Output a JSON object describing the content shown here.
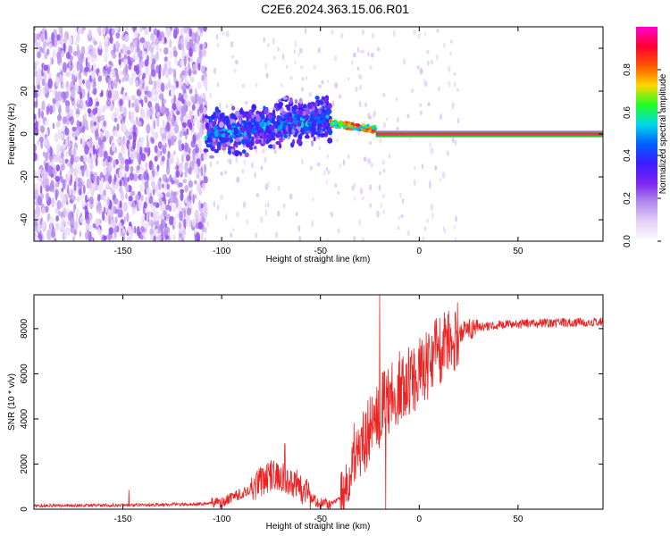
{
  "figure": {
    "title": "C2E6.2024.363.15.06.R01"
  },
  "colors": {
    "snr_line": "#ee2222",
    "spectrogram_colormap": [
      "#ffffff",
      "#e6d2f7",
      "#b38aee",
      "#7a24f0",
      "#3a1cff",
      "#0060ff",
      "#00d8e8",
      "#22ff22",
      "#ffd700",
      "#ff5500",
      "#ff0033",
      "#ff00cc"
    ],
    "trace_center": "#ff2266",
    "trace_edge": "#22cc22"
  },
  "chart_data": [
    {
      "type": "heatmap",
      "name": "spectrogram",
      "xlabel": "Height of straight line (km)",
      "ylabel": "Frequency (Hz)",
      "xlim": [
        -195,
        93
      ],
      "ylim": [
        -50,
        50
      ],
      "x_ticks": [
        -150,
        -100,
        -50,
        0,
        50
      ],
      "y_ticks": [
        -40,
        -20,
        0,
        20,
        40
      ],
      "colorbar": {
        "label": "Normalized spectral amplitude",
        "range": [
          0,
          1
        ],
        "ticks": [
          0.0,
          0.2,
          0.4,
          0.6,
          0.8
        ]
      },
      "regions": [
        {
          "x_range": [
            -195,
            -108
          ],
          "description": "diffuse noise",
          "amplitude": [
            0.05,
            0.25
          ],
          "freq_spread": 50
        },
        {
          "x_range": [
            -108,
            -45
          ],
          "description": "broadened signal",
          "center_freq": [
            0,
            8
          ],
          "freq_spread": 10,
          "amplitude": [
            0.15,
            0.45
          ]
        },
        {
          "x_range": [
            -45,
            -22
          ],
          "description": "signal tightening",
          "center_freq": [
            5,
            2
          ],
          "freq_spread": 3,
          "amplitude": [
            0.5,
            0.9
          ]
        },
        {
          "x_range": [
            -22,
            93
          ],
          "description": "stable tone",
          "center_freq": 0,
          "freq_spread": 1,
          "amplitude": [
            0.95,
            1.0
          ]
        }
      ]
    },
    {
      "type": "line",
      "name": "snr",
      "xlabel": "Height of straight line (km)",
      "ylabel": "SNR (10 * v/v)",
      "xlim": [
        -195,
        93
      ],
      "ylim": [
        0,
        9500
      ],
      "x_ticks": [
        -150,
        -100,
        -50,
        0,
        50
      ],
      "y_ticks": [
        0,
        2000,
        4000,
        6000,
        8000
      ],
      "envelope": {
        "x": [
          -195,
          -150,
          -110,
          -100,
          -90,
          -75,
          -65,
          -60,
          -55,
          -50,
          -45,
          -40,
          -35,
          -30,
          -25,
          -20,
          -15,
          -10,
          -5,
          0,
          5,
          10,
          15,
          20,
          25,
          30,
          40,
          50,
          60,
          70,
          80,
          93
        ],
        "y": [
          150,
          180,
          230,
          300,
          700,
          1500,
          1300,
          900,
          500,
          250,
          200,
          500,
          1800,
          2900,
          3600,
          4300,
          4900,
          5400,
          5600,
          6000,
          6500,
          7100,
          7500,
          7800,
          7950,
          8050,
          8150,
          8200,
          8230,
          8260,
          8280,
          8300
        ]
      },
      "spikes": [
        {
          "x": -147,
          "y": 850
        },
        {
          "x": -68,
          "y": 2900
        },
        {
          "x": -20,
          "y": 9500
        },
        {
          "x": -17,
          "y": 0
        }
      ]
    }
  ]
}
